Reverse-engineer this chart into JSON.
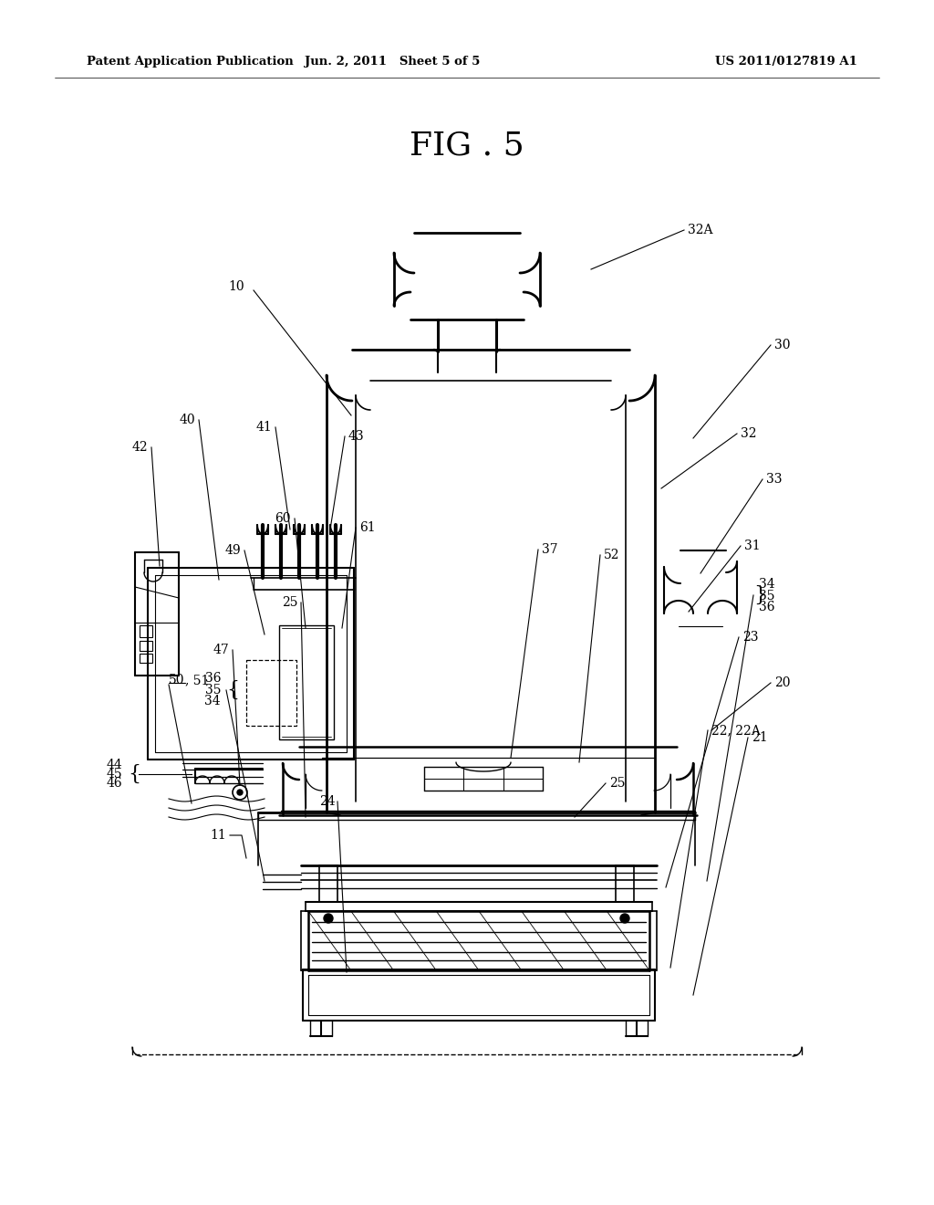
{
  "bg_color": "#ffffff",
  "header_left": "Patent Application Publication",
  "header_center": "Jun. 2, 2011   Sheet 5 of 5",
  "header_right": "US 2011/0127819 A1",
  "fig_title": "FIG . 5",
  "figsize": [
    10.24,
    13.2
  ],
  "dpi": 100
}
